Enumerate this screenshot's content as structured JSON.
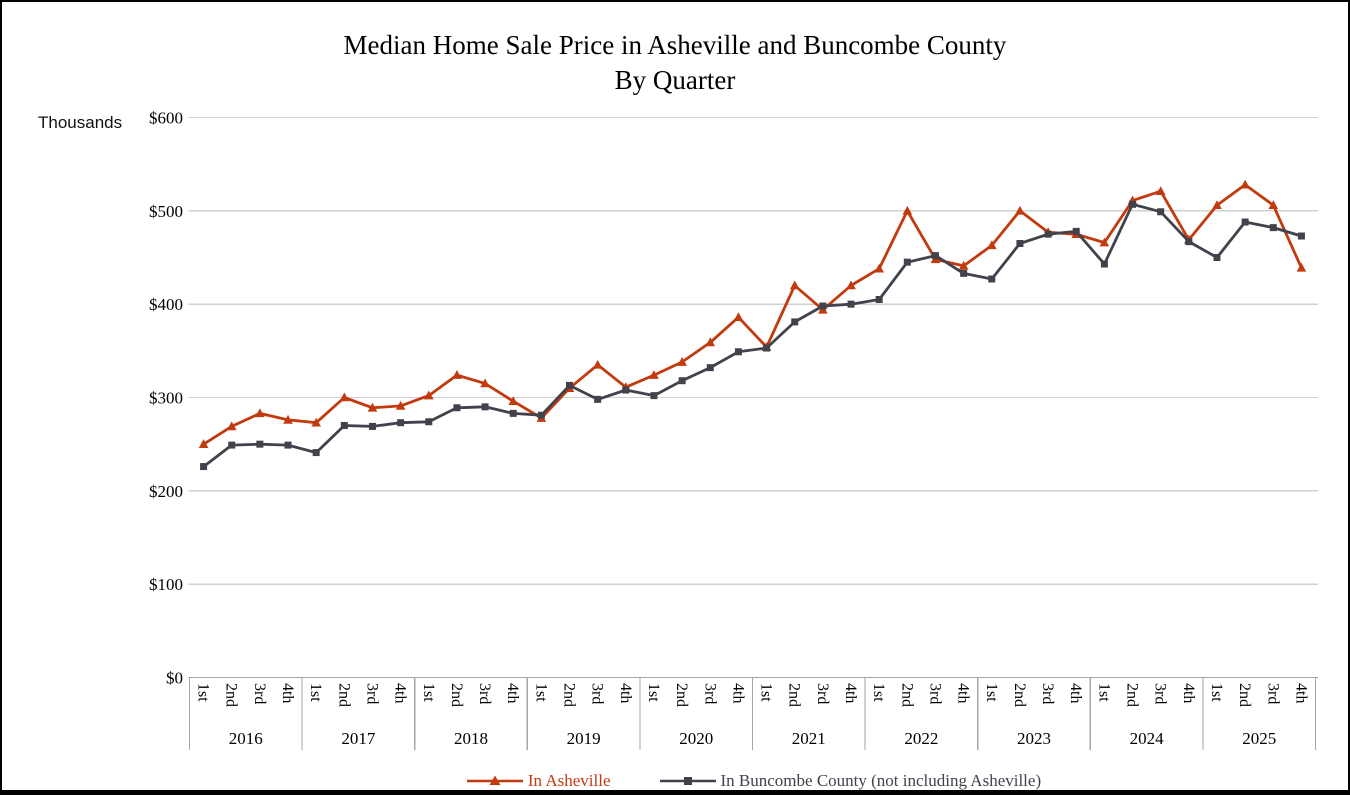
{
  "title": {
    "line1": "Median Home Sale Price in Asheville and Buncombe County",
    "line2": "By Quarter"
  },
  "y_axis": {
    "unit_label": "Thousands",
    "ticks": [
      "$600",
      "$500",
      "$400",
      "$300",
      "$200",
      "$100",
      "$0"
    ]
  },
  "legend": [
    {
      "label": "In Asheville",
      "color": "#C23A0D",
      "marker": "triangle"
    },
    {
      "label": "In Buncombe County (not including Asheville)",
      "color": "#42424D",
      "marker": "square"
    }
  ],
  "colors": {
    "asheville": "#C23A0D",
    "buncombe": "#42424D",
    "gridline": "#D0D0D0",
    "axis": "#A6A6A6"
  },
  "chart_data": {
    "type": "line",
    "title": "Median Home Sale Price in Asheville and Buncombe County By Quarter",
    "ylabel": "Thousands",
    "ylim": [
      0,
      600
    ],
    "ytick_step": 100,
    "grid": true,
    "legend_position": "bottom",
    "years": [
      "2016",
      "2017",
      "2018",
      "2019",
      "2020",
      "2021",
      "2022",
      "2023",
      "2024",
      "2025"
    ],
    "quarter_labels": [
      "1st",
      "2nd",
      "3rd",
      "4th"
    ],
    "series": [
      {
        "name": "In Asheville",
        "color": "#C23A0D",
        "marker": "triangle",
        "values": [
          250,
          269,
          283,
          276,
          273,
          300,
          289,
          291,
          302,
          324,
          315,
          296,
          278,
          310,
          335,
          311,
          324,
          338,
          359,
          386,
          354,
          420,
          394,
          420,
          438,
          500,
          448,
          441,
          463,
          500,
          477,
          475,
          466,
          511,
          521,
          469,
          506,
          528,
          506,
          439
        ]
      },
      {
        "name": "In Buncombe County (not including Asheville)",
        "color": "#42424D",
        "marker": "square",
        "values": [
          226,
          249,
          250,
          249,
          241,
          270,
          269,
          273,
          274,
          289,
          290,
          283,
          281,
          313,
          298,
          308,
          302,
          318,
          332,
          349,
          353,
          381,
          398,
          400,
          405,
          445,
          452,
          433,
          427,
          465,
          475,
          478,
          443,
          507,
          499,
          467,
          450,
          488,
          482,
          473
        ]
      }
    ]
  }
}
